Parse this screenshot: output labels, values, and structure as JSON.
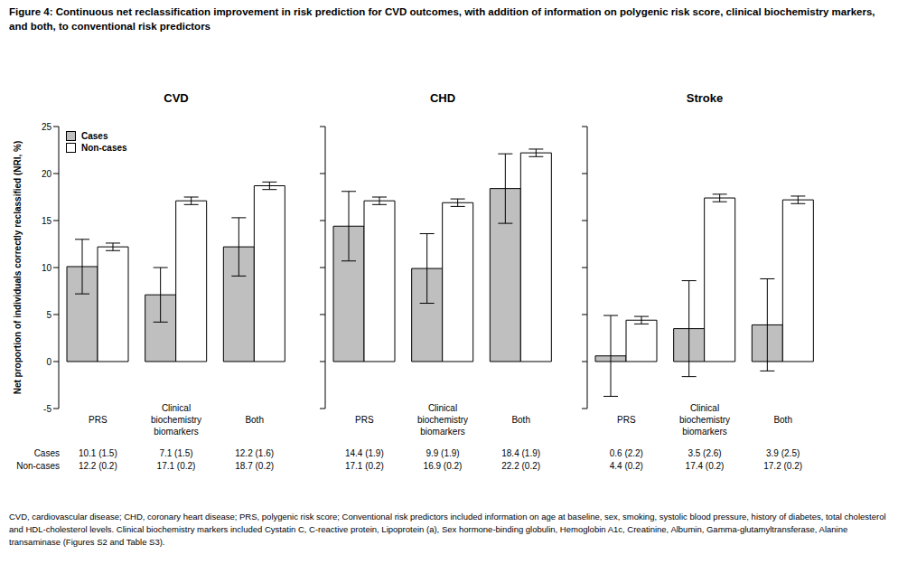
{
  "title": "Figure 4: Continuous net reclassification improvement in risk prediction for CVD outcomes, with addition of information on polygenic risk score, clinical biochemistry markers, and both, to conventional risk predictors",
  "footnote": "CVD, cardiovascular disease; CHD, coronary heart disease; PRS, polygenic risk score; Conventional risk predictors included information on age at baseline, sex, smoking, systolic blood pressure, history of diabetes, total cholesterol and HDL-cholesterol levels. Clinical biochemistry markers included Cystatin C, C-reactive protein, Lipoprotein (a), Sex hormone-binding globulin, Hemoglobin A1c, Creatinine, Albumin, Gamma-glutamyltransferase, Alanine transaminase (Figures S2 and Table S3).",
  "chart_data": [
    {
      "type": "bar",
      "title": "CVD",
      "y_label": "Net proportion of individuals correctly reclassified (NRI, %)",
      "categories": [
        "PRS",
        "Clinical biochemistry biomarkers",
        "Both"
      ],
      "series": [
        {
          "name": "Cases",
          "color": "#bfbfbf",
          "values": [
            10.1,
            7.1,
            12.2
          ],
          "errors": [
            2.9,
            2.9,
            3.1
          ],
          "value_labels": [
            "10.1 (1.5)",
            "7.1 (1.5)",
            "12.2 (1.6)"
          ]
        },
        {
          "name": "Non-cases",
          "color": "#ffffff",
          "values": [
            12.2,
            17.1,
            18.7
          ],
          "errors": [
            0.4,
            0.4,
            0.4
          ],
          "value_labels": [
            "12.2 (0.2)",
            "17.1 (0.2)",
            "18.7 (0.2)"
          ]
        }
      ],
      "ylim": [
        -5,
        25
      ],
      "yticks": [
        -5,
        0,
        5,
        10,
        15,
        20,
        25
      ],
      "grid": false,
      "legend": "upper left"
    },
    {
      "type": "bar",
      "title": "CHD",
      "categories": [
        "PRS",
        "Clinical biochemistry biomarkers",
        "Both"
      ],
      "series": [
        {
          "name": "Cases",
          "color": "#bfbfbf",
          "values": [
            14.4,
            9.9,
            18.4
          ],
          "errors": [
            3.7,
            3.7,
            3.7
          ],
          "value_labels": [
            "14.4 (1.9)",
            "9.9 (1.9)",
            "18.4 (1.9)"
          ]
        },
        {
          "name": "Non-cases",
          "color": "#ffffff",
          "values": [
            17.1,
            16.9,
            22.2
          ],
          "errors": [
            0.4,
            0.4,
            0.4
          ],
          "value_labels": [
            "17.1 (0.2)",
            "16.9 (0.2)",
            "22.2 (0.2)"
          ]
        }
      ],
      "ylim": [
        -5,
        25
      ],
      "yticks": [
        -5,
        0,
        5,
        10,
        15,
        20,
        25
      ],
      "grid": false,
      "tick_labels": "x"
    },
    {
      "type": "bar",
      "title": "Stroke",
      "categories": [
        "PRS",
        "Clinical biochemistry biomarkers",
        "Both"
      ],
      "series": [
        {
          "name": "Cases",
          "color": "#bfbfbf",
          "values": [
            0.6,
            3.5,
            3.9
          ],
          "errors": [
            4.3,
            5.1,
            4.9
          ],
          "value_labels": [
            "0.6 (2.2)",
            "3.5 (2.6)",
            "3.9 (2.5)"
          ]
        },
        {
          "name": "Non-cases",
          "color": "#ffffff",
          "values": [
            4.4,
            17.4,
            17.2
          ],
          "errors": [
            0.4,
            0.4,
            0.4
          ],
          "value_labels": [
            "4.4 (0.2)",
            "17.4 (0.2)",
            "17.2 (0.2)"
          ]
        }
      ],
      "ylim": [
        -5,
        25
      ],
      "yticks": [
        -5,
        0,
        5,
        10,
        15,
        20,
        25
      ],
      "grid": false,
      "tick_labels": "x"
    }
  ]
}
